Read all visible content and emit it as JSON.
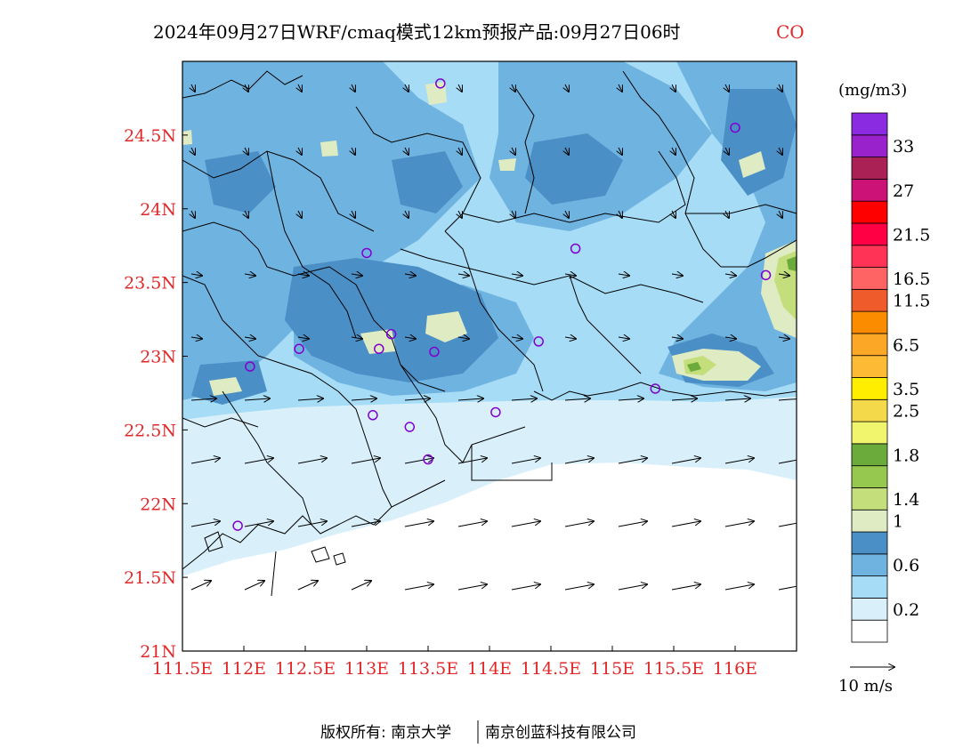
{
  "title": {
    "main": "2024年09月27日WRF/cmaq模式12km预报产品:09月27日06时",
    "species": "CO"
  },
  "map": {
    "lon_range": [
      111.5,
      116.5
    ],
    "lat_range": [
      21.0,
      25.0
    ],
    "x_ticks": [
      {
        "lon": 111.5,
        "label": "111.5E"
      },
      {
        "lon": 112.0,
        "label": "112E"
      },
      {
        "lon": 112.5,
        "label": "112.5E"
      },
      {
        "lon": 113.0,
        "label": "113E"
      },
      {
        "lon": 113.5,
        "label": "113.5E"
      },
      {
        "lon": 114.0,
        "label": "114E"
      },
      {
        "lon": 114.5,
        "label": "114.5E"
      },
      {
        "lon": 115.0,
        "label": "115E"
      },
      {
        "lon": 115.5,
        "label": "115.5E"
      },
      {
        "lon": 116.0,
        "label": "116E"
      }
    ],
    "y_ticks": [
      {
        "lat": 21.0,
        "label": "21N"
      },
      {
        "lat": 21.5,
        "label": "21.5N"
      },
      {
        "lat": 22.0,
        "label": "22N"
      },
      {
        "lat": 22.5,
        "label": "22.5N"
      },
      {
        "lat": 23.0,
        "label": "23N"
      },
      {
        "lat": 23.5,
        "label": "23.5N"
      },
      {
        "lat": 24.0,
        "label": "24N"
      },
      {
        "lat": 24.5,
        "label": "24.5N"
      }
    ],
    "stations": [
      {
        "lon": 113.6,
        "lat": 24.85
      },
      {
        "lon": 116.0,
        "lat": 24.55
      },
      {
        "lon": 113.0,
        "lat": 23.7
      },
      {
        "lon": 114.7,
        "lat": 23.73
      },
      {
        "lon": 116.25,
        "lat": 23.55
      },
      {
        "lon": 112.45,
        "lat": 23.05
      },
      {
        "lon": 113.1,
        "lat": 23.05
      },
      {
        "lon": 113.2,
        "lat": 23.15
      },
      {
        "lon": 113.55,
        "lat": 23.03
      },
      {
        "lon": 114.4,
        "lat": 23.1
      },
      {
        "lon": 112.05,
        "lat": 22.93
      },
      {
        "lon": 115.35,
        "lat": 22.78
      },
      {
        "lon": 113.05,
        "lat": 22.6
      },
      {
        "lon": 113.35,
        "lat": 22.52
      },
      {
        "lon": 114.05,
        "lat": 22.62
      },
      {
        "lon": 113.5,
        "lat": 22.3
      },
      {
        "lon": 111.95,
        "lat": 21.85
      }
    ],
    "station_color": "#8000d0",
    "land_color": "#ffffff",
    "boundary_color": "#000000"
  },
  "legend": {
    "unit": "(mg/m3)",
    "levels": [
      {
        "color": "#ffffff",
        "label": ""
      },
      {
        "color": "#d9f0fb",
        "label": "0.2"
      },
      {
        "color": "#a6dcf5",
        "label": ""
      },
      {
        "color": "#6fb3e0",
        "label": "0.6"
      },
      {
        "color": "#4a8fc6",
        "label": ""
      },
      {
        "color": "#deebc3",
        "label": "1"
      },
      {
        "color": "#c3de7a",
        "label": "1.4"
      },
      {
        "color": "#96c84f",
        "label": ""
      },
      {
        "color": "#6aab3b",
        "label": "1.8"
      },
      {
        "color": "#f1f56e",
        "label": ""
      },
      {
        "color": "#f4d94a",
        "label": "2.5"
      },
      {
        "color": "#ffee00",
        "label": "3.5"
      },
      {
        "color": "#fdbb35",
        "label": ""
      },
      {
        "color": "#fca726",
        "label": "6.5"
      },
      {
        "color": "#fb8c00",
        "label": ""
      },
      {
        "color": "#ef5b2a",
        "label": "11.5"
      },
      {
        "color": "#ff6464",
        "label": "16.5"
      },
      {
        "color": "#ff3355",
        "label": ""
      },
      {
        "color": "#ff0044",
        "label": "21.5"
      },
      {
        "color": "#ff0000",
        "label": ""
      },
      {
        "color": "#cc1177",
        "label": "27"
      },
      {
        "color": "#aa2255",
        "label": ""
      },
      {
        "color": "#9922cc",
        "label": "33"
      },
      {
        "color": "#8a2be2",
        "label": ""
      }
    ],
    "wind_reference": "10 m/s"
  },
  "footer": {
    "copyright": "版权所有: 南京大学",
    "company": "南京创蓝科技有限公司"
  }
}
